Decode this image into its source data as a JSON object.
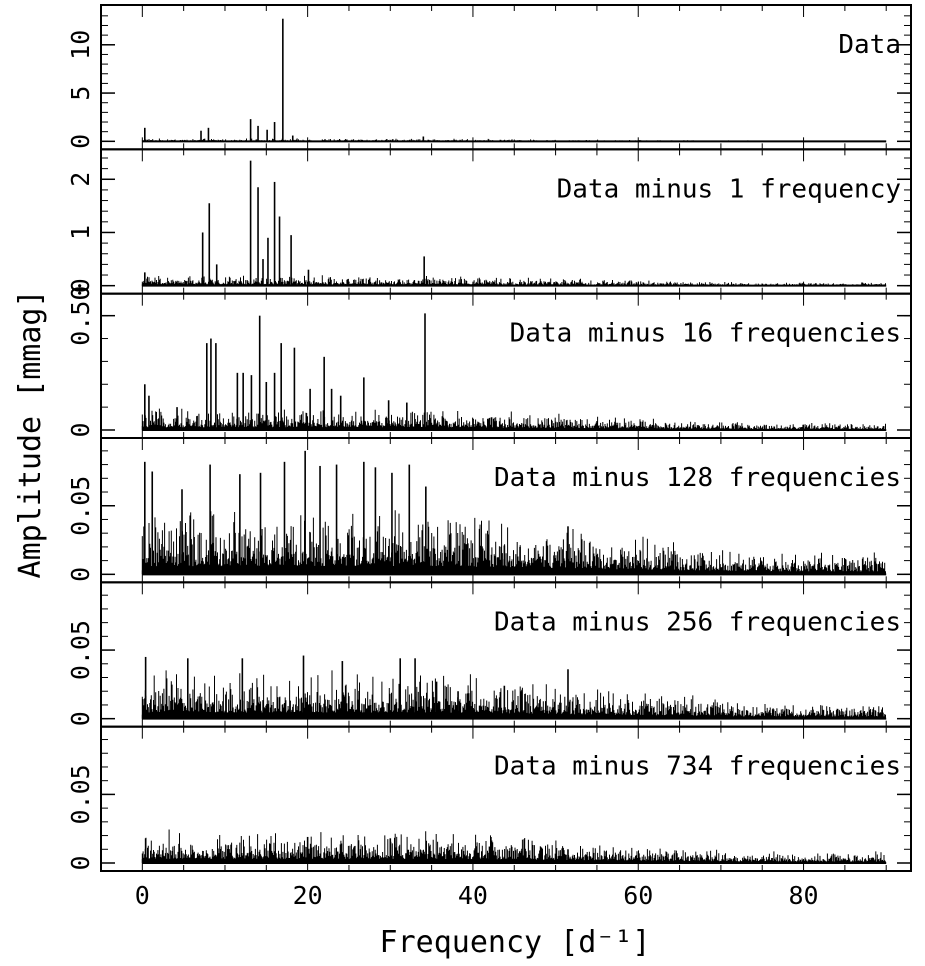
{
  "chart_data": {
    "type": "line",
    "title": "",
    "xlabel": "Frequency [d⁻¹]",
    "ylabel": "Amplitude [mmag]",
    "xlim": [
      -5,
      93
    ],
    "x_ticks": [
      "0",
      "20",
      "40",
      "60",
      "80"
    ],
    "grid": false,
    "panels": [
      {
        "name": "Data",
        "ylim": [
          0,
          13.5
        ],
        "y_ticks": [
          "0",
          "5",
          "10"
        ],
        "noise_floor": 0.12,
        "peaks": [
          {
            "x": 0.3,
            "y": 1.4
          },
          {
            "x": 7.1,
            "y": 1.1
          },
          {
            "x": 8.0,
            "y": 1.4
          },
          {
            "x": 13.1,
            "y": 2.3
          },
          {
            "x": 14.0,
            "y": 1.6
          },
          {
            "x": 15.1,
            "y": 1.2
          },
          {
            "x": 16.0,
            "y": 2.0
          },
          {
            "x": 17.0,
            "y": 12.7
          },
          {
            "x": 18.2,
            "y": 0.6
          },
          {
            "x": 34.0,
            "y": 0.5
          }
        ]
      },
      {
        "name": "Data minus 1 frequency",
        "ylim": [
          0,
          2.45
        ],
        "y_ticks": [
          "0",
          "1",
          "2"
        ],
        "noise_floor": 0.08,
        "peaks": [
          {
            "x": 0.3,
            "y": 0.25
          },
          {
            "x": 7.3,
            "y": 1.0
          },
          {
            "x": 8.1,
            "y": 1.55
          },
          {
            "x": 9.0,
            "y": 0.4
          },
          {
            "x": 13.1,
            "y": 2.35
          },
          {
            "x": 14.0,
            "y": 1.85
          },
          {
            "x": 14.6,
            "y": 0.5
          },
          {
            "x": 15.2,
            "y": 0.9
          },
          {
            "x": 16.0,
            "y": 1.95
          },
          {
            "x": 16.6,
            "y": 1.3
          },
          {
            "x": 18.0,
            "y": 0.95
          },
          {
            "x": 20.1,
            "y": 0.3
          },
          {
            "x": 34.1,
            "y": 0.55
          }
        ]
      },
      {
        "name": "Data minus 16 frequencies",
        "ylim": [
          0,
          0.57
        ],
        "y_ticks": [
          "0",
          "0.50"
        ],
        "noise_floor": 0.04,
        "peaks": [
          {
            "x": 0.3,
            "y": 0.2
          },
          {
            "x": 0.8,
            "y": 0.15
          },
          {
            "x": 4.2,
            "y": 0.1
          },
          {
            "x": 7.8,
            "y": 0.38
          },
          {
            "x": 8.3,
            "y": 0.4
          },
          {
            "x": 8.9,
            "y": 0.38
          },
          {
            "x": 11.5,
            "y": 0.25
          },
          {
            "x": 12.2,
            "y": 0.25
          },
          {
            "x": 13.2,
            "y": 0.24
          },
          {
            "x": 14.2,
            "y": 0.5
          },
          {
            "x": 15.0,
            "y": 0.21
          },
          {
            "x": 16.0,
            "y": 0.25
          },
          {
            "x": 16.8,
            "y": 0.38
          },
          {
            "x": 18.4,
            "y": 0.36
          },
          {
            "x": 20.3,
            "y": 0.18
          },
          {
            "x": 22.0,
            "y": 0.32
          },
          {
            "x": 22.9,
            "y": 0.18
          },
          {
            "x": 24.0,
            "y": 0.15
          },
          {
            "x": 26.8,
            "y": 0.23
          },
          {
            "x": 29.8,
            "y": 0.13
          },
          {
            "x": 32.0,
            "y": 0.12
          },
          {
            "x": 34.2,
            "y": 0.51
          }
        ]
      },
      {
        "name": "Data minus 128 frequencies",
        "ylim": [
          0,
          0.095
        ],
        "y_ticks": [
          "0",
          "0.05"
        ],
        "noise_floor": 0.02,
        "peaks": [
          {
            "x": 0.3,
            "y": 0.082
          },
          {
            "x": 1.2,
            "y": 0.075
          },
          {
            "x": 4.8,
            "y": 0.062
          },
          {
            "x": 8.2,
            "y": 0.08
          },
          {
            "x": 11.8,
            "y": 0.073
          },
          {
            "x": 14.3,
            "y": 0.074
          },
          {
            "x": 17.2,
            "y": 0.082
          },
          {
            "x": 19.7,
            "y": 0.09
          },
          {
            "x": 21.5,
            "y": 0.079
          },
          {
            "x": 23.5,
            "y": 0.08
          },
          {
            "x": 26.8,
            "y": 0.082
          },
          {
            "x": 28.2,
            "y": 0.078
          },
          {
            "x": 30.2,
            "y": 0.074
          },
          {
            "x": 32.3,
            "y": 0.08
          },
          {
            "x": 34.3,
            "y": 0.064
          },
          {
            "x": 39.2,
            "y": 0.022
          },
          {
            "x": 43.8,
            "y": 0.021
          },
          {
            "x": 45.7,
            "y": 0.02
          },
          {
            "x": 51.5,
            "y": 0.035
          }
        ]
      },
      {
        "name": "Data minus 256 frequencies",
        "ylim": [
          0,
          0.095
        ],
        "y_ticks": [
          "0",
          "0.05"
        ],
        "noise_floor": 0.015,
        "peaks": [
          {
            "x": 0.4,
            "y": 0.045
          },
          {
            "x": 5.5,
            "y": 0.044
          },
          {
            "x": 12.1,
            "y": 0.044
          },
          {
            "x": 19.5,
            "y": 0.046
          },
          {
            "x": 24.2,
            "y": 0.042
          },
          {
            "x": 31.2,
            "y": 0.044
          },
          {
            "x": 33.0,
            "y": 0.044
          },
          {
            "x": 35.6,
            "y": 0.027
          },
          {
            "x": 38.2,
            "y": 0.02
          },
          {
            "x": 43.8,
            "y": 0.024
          },
          {
            "x": 45.8,
            "y": 0.02
          },
          {
            "x": 51.5,
            "y": 0.036
          }
        ]
      },
      {
        "name": "Data minus 734 frequencies",
        "ylim": [
          0,
          0.095
        ],
        "y_ticks": [
          "0",
          "0.05"
        ],
        "noise_floor": 0.01,
        "peaks": [
          {
            "x": 0.4,
            "y": 0.018
          },
          {
            "x": 20.0,
            "y": 0.019
          },
          {
            "x": 30.0,
            "y": 0.018
          },
          {
            "x": 42.0,
            "y": 0.012
          },
          {
            "x": 51.5,
            "y": 0.01
          }
        ]
      }
    ]
  }
}
